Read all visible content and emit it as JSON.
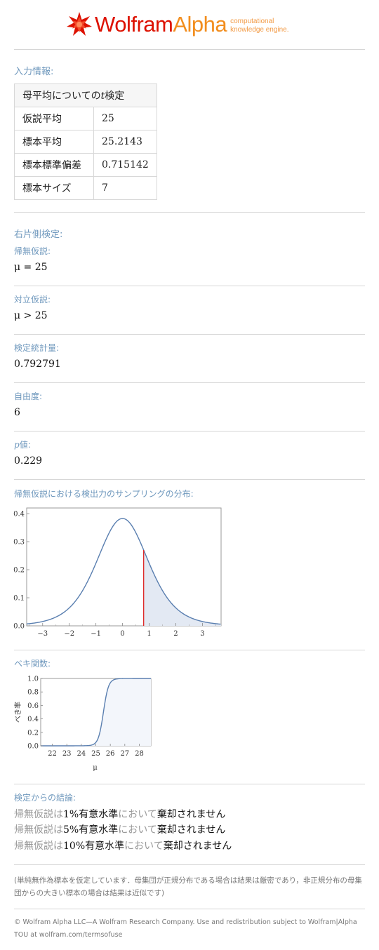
{
  "header": {
    "logo_part1": "Wolfram",
    "logo_part2": "Alpha",
    "tagline_line1": "computational",
    "tagline_line2": "knowledge engine."
  },
  "input": {
    "title": "入力情報:",
    "table_header": "母平均についてのt検定",
    "rows": [
      {
        "label": "仮説平均",
        "value": "25"
      },
      {
        "label": "標本平均",
        "value": "25.2143"
      },
      {
        "label": "標本標準偏差",
        "value": "0.715142"
      },
      {
        "label": "標本サイズ",
        "value": "7"
      }
    ]
  },
  "test": {
    "title": "右片側検定:",
    "null_label": "帰無仮説:",
    "null_value": "μ = 25",
    "alt_label": "対立仮説:",
    "alt_value": "μ > 25",
    "stat_label": "検定統計量:",
    "stat_value": "0.792791",
    "df_label": "自由度:",
    "df_value": "6",
    "p_label_italic": "p",
    "p_label_rest": "値:",
    "p_value": "0.229"
  },
  "sampling": {
    "title": "帰無仮説における検出力のサンプリングの分布:"
  },
  "power": {
    "title": "ベキ関数:"
  },
  "chart_data": [
    {
      "type": "area",
      "title": "",
      "xlabel": "",
      "ylabel": "",
      "xlim": [
        -3.6,
        3.7
      ],
      "ylim": [
        0,
        0.42
      ],
      "xticks": [
        "−3",
        "−2",
        "−1",
        "0",
        "1",
        "2",
        "3"
      ],
      "yticks": [
        "0.0",
        "0.1",
        "0.2",
        "0.3",
        "0.4"
      ],
      "series": [
        {
          "distribution": "t",
          "df": 6
        }
      ],
      "shaded_from_x": 0.792791,
      "colors": {
        "line": "#5a7fb0",
        "fill": "#e3e9f3",
        "marker": "#dd2222"
      }
    },
    {
      "type": "area",
      "title": "",
      "xlabel": "μ",
      "ylabel": "べき率",
      "xlim": [
        21.2,
        28.8
      ],
      "ylim": [
        0,
        1
      ],
      "xticks": [
        "22",
        "23",
        "24",
        "25",
        "26",
        "27",
        "28"
      ],
      "yticks": [
        "0.0",
        "0.2",
        "0.4",
        "0.6",
        "0.8",
        "1.0"
      ],
      "series": [
        {
          "function": "power",
          "mu0": 25,
          "se": 0.2703,
          "df": 6
        }
      ],
      "colors": {
        "line": "#5a7fb0",
        "fill": "#f3f6fb"
      }
    }
  ],
  "conclusion": {
    "title": "検定からの結論:",
    "lines": [
      {
        "p1": "帰無仮説は",
        "level": "1%",
        "p2": "有意水準",
        "p3": "において",
        "p4": "棄却されません"
      },
      {
        "p1": "帰無仮説は",
        "level": "5%",
        "p2": "有意水準",
        "p3": "において",
        "p4": "棄却されません"
      },
      {
        "p1": "帰無仮説は",
        "level": "10%",
        "p2": "有意水準",
        "p3": "において",
        "p4": "棄却されません"
      }
    ]
  },
  "note": "(単純無作為標本を仮定しています．母集団が正規分布である場合は結果は厳密であり，非正規分布の母集団からの大きい標本の場合は結果は近似です)",
  "footer": "© Wolfram Alpha LLC—A Wolfram Research Company. Use and redistribution subject to Wolfram|Alpha TOU at wolfram.com/termsofuse"
}
